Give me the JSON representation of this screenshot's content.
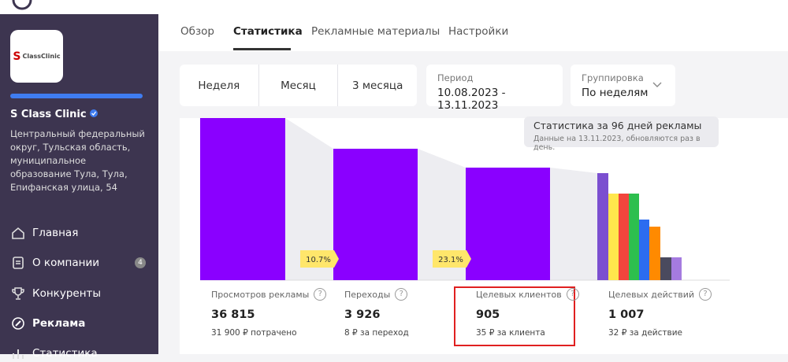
{
  "sidebar": {
    "logo_text": "ClassClinic",
    "company": "S Class Clinic",
    "address": "Центральный федеральный округ, Тульская область, муниципальное образование Тула, Тула, Епифанская улица, 54",
    "menu": [
      {
        "label": "Главная"
      },
      {
        "label": "О компании",
        "badge": 4
      },
      {
        "label": "Конкуренты"
      },
      {
        "label": "Реклама"
      },
      {
        "label": "Статистика"
      }
    ]
  },
  "tabs": [
    "Обзор",
    "Статистика",
    "Рекламные материалы",
    "Настройки"
  ],
  "period_buttons": [
    "Неделя",
    "Месяц",
    "3 месяца"
  ],
  "period": {
    "label": "Период",
    "value": "10.08.2023 - 13.11.2023"
  },
  "grouping": {
    "label": "Группировка",
    "value": "По неделям"
  },
  "info": {
    "title": "Статистика за 96 дней рекламы",
    "note": "Данные на 13.11.2023, обновляются раз в день."
  },
  "conversions": [
    "10.7%",
    "23.1%"
  ],
  "stages": [
    {
      "label": "Просмотров рекламы",
      "value": "36 815",
      "detail": "31 900 ₽ потрачено"
    },
    {
      "label": "Переходы",
      "value": "3 926",
      "detail": "8 ₽ за переход"
    },
    {
      "label": "Целевых клиентов",
      "value": "905",
      "detail": "35 ₽ за клиента"
    },
    {
      "label": "Целевых действий",
      "value": "1 007",
      "detail": "32 ₽ за действие"
    }
  ]
}
